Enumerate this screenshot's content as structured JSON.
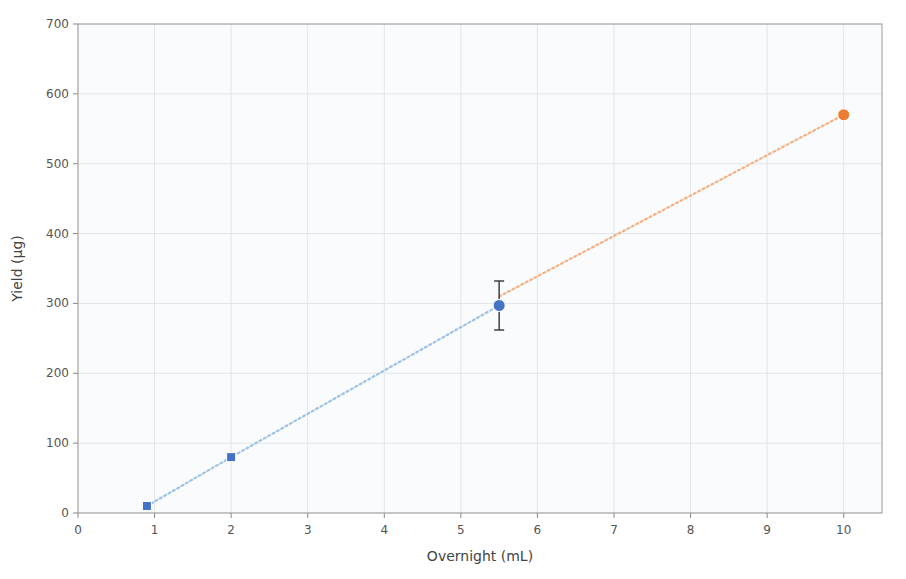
{
  "chart_data": {
    "type": "line",
    "xlabel": "Overnight (mL)",
    "ylabel": "Yield (μg)",
    "xlim": [
      0,
      10.5
    ],
    "ylim": [
      0,
      700
    ],
    "xticks": [
      0,
      1,
      2,
      3,
      4,
      5,
      6,
      7,
      8,
      9,
      10
    ],
    "yticks": [
      0,
      100,
      200,
      300,
      400,
      500,
      600,
      700
    ],
    "grid": true,
    "series": [
      {
        "type": "line",
        "line_style": "dotted",
        "marker": "none",
        "color": "#9DC3E6",
        "x": [
          0.9,
          2.0,
          5.5
        ],
        "values": [
          10,
          80,
          297
        ]
      },
      {
        "type": "line",
        "line_style": "dotted",
        "marker": "none",
        "color": "#F4B183",
        "x": [
          5.5,
          10.0
        ],
        "values": [
          310,
          570
        ]
      },
      {
        "type": "scatter",
        "marker": "square",
        "color": "#4472C4",
        "x": [
          0.9,
          2.0
        ],
        "values": [
          10,
          80
        ]
      },
      {
        "type": "scatter",
        "marker": "circle",
        "color": "#4472C4",
        "x": [
          5.5
        ],
        "values": [
          297
        ],
        "errors": [
          35
        ]
      },
      {
        "type": "scatter",
        "marker": "circle",
        "color": "#ED7D31",
        "x": [
          10.0
        ],
        "values": [
          570
        ]
      }
    ]
  }
}
